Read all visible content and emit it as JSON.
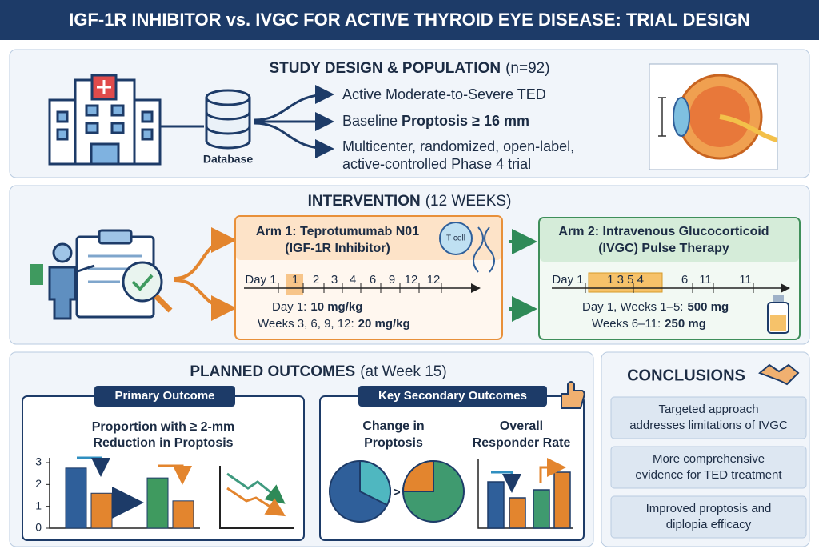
{
  "header": {
    "title": "IGF-1R INHIBITOR vs. IVGC FOR ACTIVE THYROID EYE DISEASE: TRIAL DESIGN"
  },
  "study_design": {
    "heading": "STUDY DESIGN & POPULATION",
    "sample": "(n=92)",
    "database_label": "Database",
    "criterion_1": "Active Moderate-to-Severe TED",
    "criterion_2": {
      "prefix": "Baseline",
      "emphasis": "Proptosis ≥ 16 mm"
    },
    "criterion_3": [
      "Multicenter, randomized, open-label,",
      "active-controlled Phase 4 trial"
    ]
  },
  "intervention": {
    "heading": "INTERVENTION",
    "duration": "(12 WEEKS)",
    "arm_1": {
      "title": [
        "Arm 1: Teprotumumab N01",
        "(IGF-1R Inhibitor)"
      ],
      "badge": "T-cell",
      "timeline": [
        "Day 1",
        "1",
        "2",
        "3",
        "4",
        "6",
        "9",
        "12",
        "12"
      ],
      "dose_1": {
        "label": "Day 1:",
        "amount": "10 mg/kg"
      },
      "dose_2": {
        "label": "Weeks 3, 6, 9, 12:",
        "amount": "20 mg/kg"
      }
    },
    "arm_2": {
      "title": [
        "Arm 2: Intravenous Glucocorticoid",
        "(IVGC) Pulse Therapy"
      ],
      "timeline": [
        "Day 1",
        "1 3 5 4",
        "6",
        "11",
        "11"
      ],
      "dose_1": {
        "label": "Day 1, Weeks 1–5:",
        "amount": "500 mg"
      },
      "dose_2": {
        "label": "Weeks 6–11:",
        "amount": "250 mg"
      }
    }
  },
  "outcomes": {
    "heading": "PLANNED OUTCOMES",
    "timing": "(at Week 15)",
    "primary": {
      "label": "Primary Outcome",
      "title": [
        "Proportion with ≥ 2-mm",
        "Reduction in Proptosis"
      ],
      "chart": {
        "type": "bar",
        "ylim": [
          0,
          3
        ],
        "yticks": [
          0,
          1,
          2,
          3
        ],
        "values": [
          2.75,
          1.6,
          2.3,
          1.25
        ],
        "colors": [
          "#2f5f9a",
          "#e3852e",
          "#3f9a5f",
          "#e3852e"
        ]
      }
    },
    "secondary": {
      "label": "Key Secondary Outcomes",
      "outcome_1": [
        "Change in",
        "Proptosis"
      ],
      "outcome_2": [
        "Overall",
        "Responder Rate"
      ],
      "comparison": ">"
    }
  },
  "conclusions": {
    "heading": "CONCLUSIONS",
    "items": [
      [
        "Targeted approach",
        "addresses limitations of IVGC"
      ],
      [
        "More comprehensive",
        "evidence for TED treatment"
      ],
      [
        "Improved proptosis and",
        "diplopia efficacy"
      ]
    ]
  }
}
